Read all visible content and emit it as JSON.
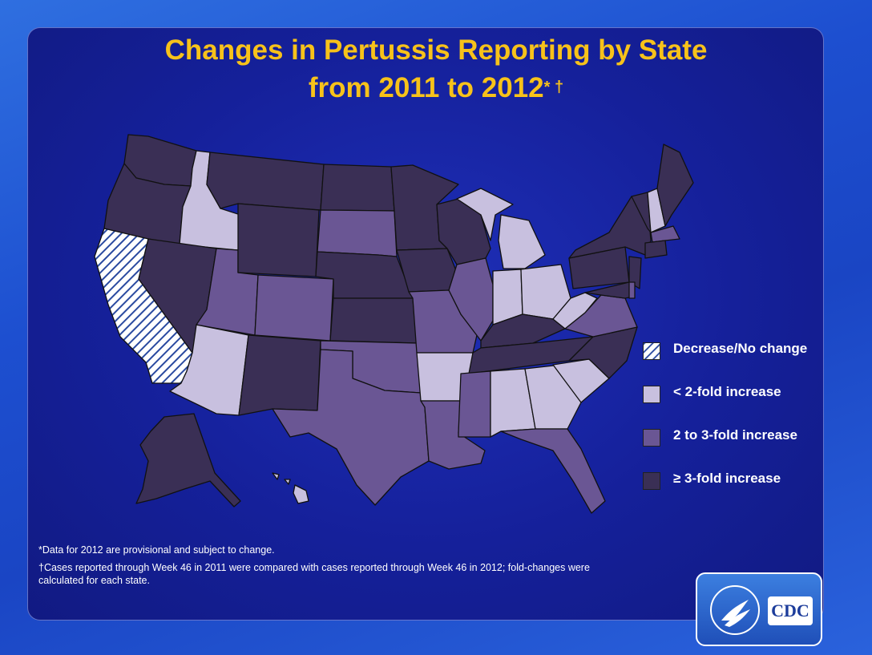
{
  "title": {
    "line1": "Changes in Pertussis Reporting by State",
    "line2": "from 2011 to 2012",
    "marks": "* †"
  },
  "legend": [
    {
      "key": "decrease",
      "label": "Decrease/No change",
      "color": "hatched"
    },
    {
      "key": "lt2",
      "label": "< 2-fold increase",
      "color": "#c8c0df"
    },
    {
      "key": "2to3",
      "label": "2 to 3-fold increase",
      "color": "#6a5694"
    },
    {
      "key": "ge3",
      "label": "≥ 3-fold increase",
      "color": "#3a2f55"
    }
  ],
  "notes": {
    "note1": "*Data  for 2012  are provisional and subject to change.",
    "note2": "†Cases reported through Week 46 in 2011   were compared with cases reported through Week 46 in 2012;  fold-changes were calculated for each state."
  },
  "logo": {
    "text": "CDC",
    "icon": "hhs-eagle-icon"
  },
  "states": {
    "WA": "ge3",
    "OR": "ge3",
    "CA": "decrease",
    "ID": "lt2",
    "NV": "ge3",
    "AZ": "lt2",
    "UT": "2to3",
    "MT": "ge3",
    "WY": "ge3",
    "CO": "2to3",
    "NM": "ge3",
    "ND": "ge3",
    "SD": "2to3",
    "NE": "ge3",
    "KS": "ge3",
    "OK": "2to3",
    "TX": "2to3",
    "MN": "ge3",
    "IA": "ge3",
    "MO": "2to3",
    "AR": "lt2",
    "LA": "2to3",
    "WI": "ge3",
    "IL": "2to3",
    "MI": "lt2",
    "IN": "lt2",
    "OH": "lt2",
    "KY": "ge3",
    "TN": "ge3",
    "MS": "2to3",
    "AL": "lt2",
    "GA": "lt2",
    "FL": "2to3",
    "SC": "lt2",
    "NC": "ge3",
    "VA": "2to3",
    "WV": "lt2",
    "PA": "ge3",
    "NY": "ge3",
    "ME": "ge3",
    "NH": "lt2",
    "VT": "ge3",
    "MA": "2to3",
    "CT": "ge3",
    "NJ": "ge3",
    "MD": "ge3",
    "DE": "2to3",
    "AK": "ge3",
    "HI": "lt2"
  },
  "colors": {
    "background": "#1a45c4",
    "title": "#f7c21a",
    "panel": "#15209a"
  }
}
